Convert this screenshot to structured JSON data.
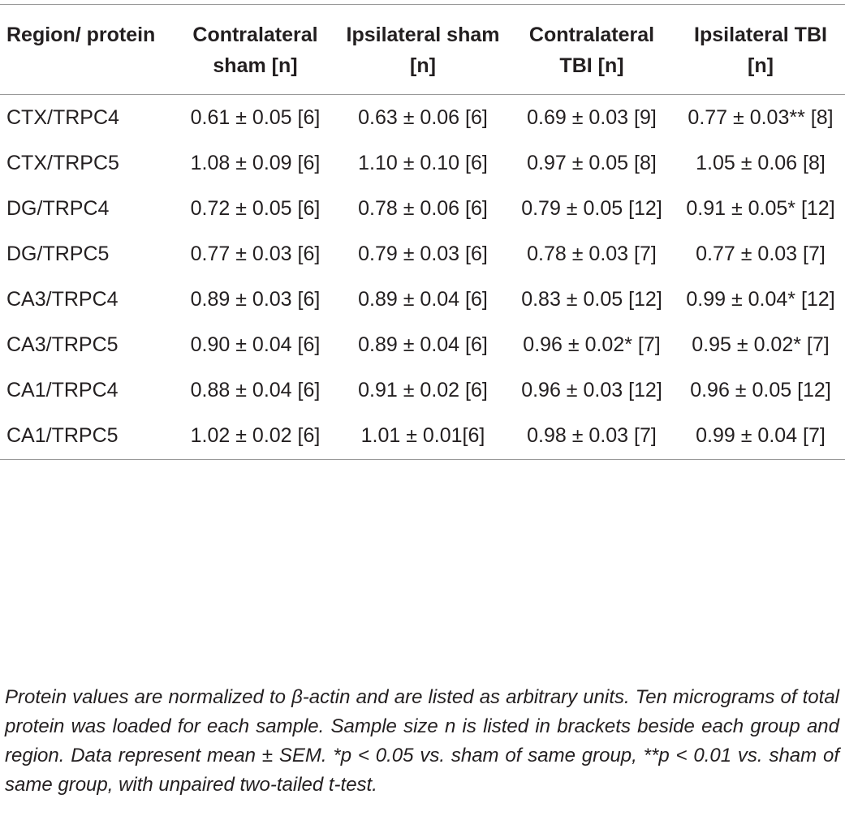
{
  "table": {
    "header": [
      "Region/ protein",
      "Contralateral sham [n]",
      "Ipsilateral sham [n]",
      "Contralateral TBI [n]",
      "Ipsilateral TBI [n]"
    ],
    "rows": [
      [
        "CTX/TRPC4",
        "0.61 ± 0.05 [6]",
        "0.63 ± 0.06 [6]",
        "0.69 ± 0.03 [9]",
        "0.77 ± 0.03** [8]"
      ],
      [
        "CTX/TRPC5",
        "1.08 ± 0.09 [6]",
        "1.10 ± 0.10 [6]",
        "0.97 ± 0.05 [8]",
        "1.05 ± 0.06 [8]"
      ],
      [
        "DG/TRPC4",
        "0.72 ± 0.05 [6]",
        "0.78 ± 0.06 [6]",
        "0.79 ± 0.05 [12]",
        "0.91 ± 0.05* [12]"
      ],
      [
        "DG/TRPC5",
        "0.77 ± 0.03 [6]",
        "0.79 ± 0.03 [6]",
        "0.78 ± 0.03 [7]",
        "0.77 ± 0.03 [7]"
      ],
      [
        "CA3/TRPC4",
        "0.89 ± 0.03 [6]",
        "0.89 ± 0.04 [6]",
        "0.83 ± 0.05 [12]",
        "0.99 ± 0.04* [12]"
      ],
      [
        "CA3/TRPC5",
        "0.90 ± 0.04 [6]",
        "0.89 ± 0.04 [6]",
        "0.96 ± 0.02* [7]",
        "0.95 ± 0.02* [7]"
      ],
      [
        "CA1/TRPC4",
        "0.88 ± 0.04 [6]",
        "0.91 ± 0.02 [6]",
        "0.96 ± 0.03 [12]",
        "0.96 ± 0.05 [12]"
      ],
      [
        "CA1/TRPC5",
        "1.02 ± 0.02 [6]",
        "1.01 ± 0.01[6]",
        "0.98 ± 0.03 [7]",
        "0.99 ± 0.04 [7]"
      ]
    ]
  },
  "footnote": "Protein values are normalized to β-actin and are listed as arbitrary units. Ten micrograms of total protein was loaded for each sample. Sample size n is listed in brackets beside each group and region. Data represent mean ± SEM. *p < 0.05 vs. sham of same group, **p < 0.01 vs. sham of same group, with unpaired two-tailed t-test."
}
